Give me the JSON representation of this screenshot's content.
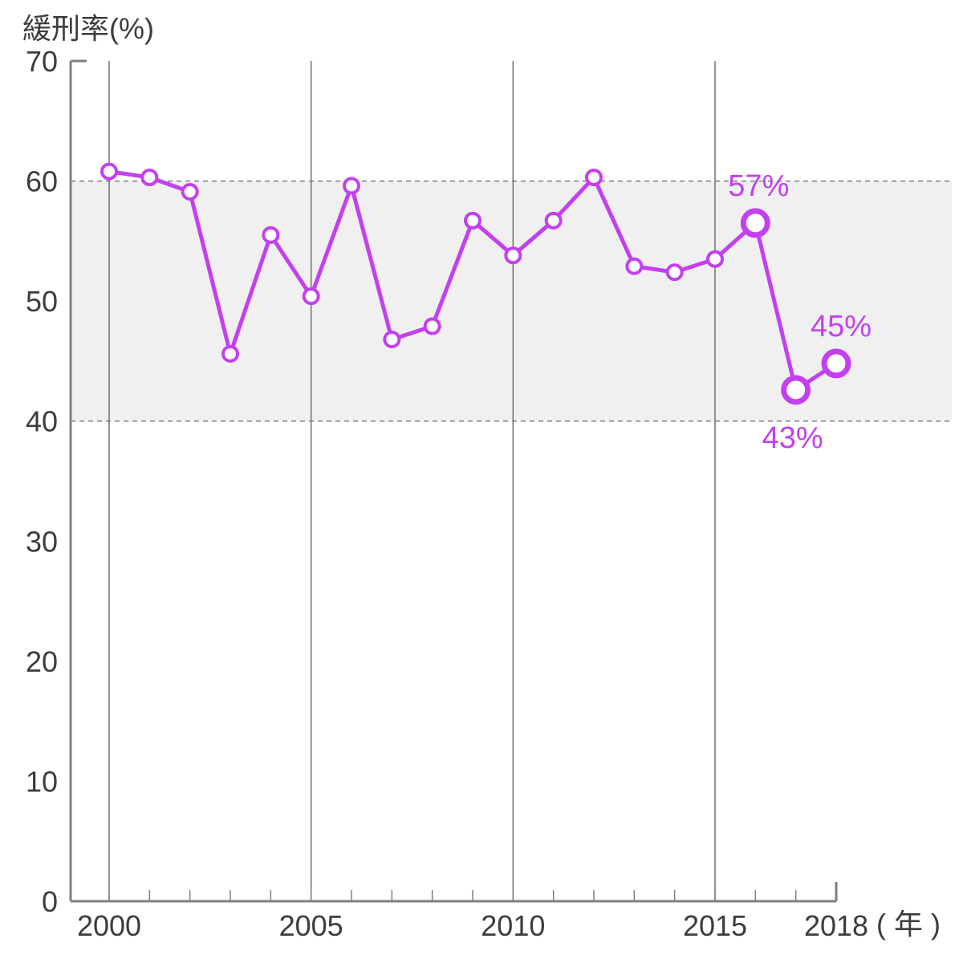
{
  "chart_data": {
    "type": "line",
    "ylabel": "緩刑率(%)",
    "xlabel": "( 年 )",
    "ylim": [
      0,
      70
    ],
    "xlim": [
      2000,
      2018
    ],
    "yticks": [
      0,
      10,
      20,
      30,
      40,
      50,
      60,
      70
    ],
    "xticks": [
      2000,
      2005,
      2010,
      2015,
      2018
    ],
    "grid": "vertical lines at 2000, 2005, 2010, 2015",
    "reference_band": {
      "from": 40,
      "to": 60
    },
    "series": [
      {
        "x": [
          2000,
          2001,
          2002,
          2003,
          2004,
          2005,
          2006,
          2007,
          2008,
          2009,
          2010,
          2011,
          2012,
          2013,
          2014,
          2015,
          2016,
          2017,
          2018
        ],
        "values": [
          60.8,
          60.3,
          59.1,
          45.6,
          55.5,
          50.4,
          59.6,
          46.8,
          47.9,
          56.7,
          53.8,
          56.7,
          60.3,
          52.9,
          52.4,
          53.5,
          56.5,
          42.6,
          44.8
        ]
      }
    ],
    "annotations": [
      {
        "x": 2016,
        "label": "57%"
      },
      {
        "x": 2017,
        "label": "43%"
      },
      {
        "x": 2018,
        "label": "45%"
      }
    ],
    "colors": {
      "line": "#c340f0",
      "band": "#f0f0f0",
      "axis": "#808080",
      "grid": "#707070",
      "text": "#3c3c3c"
    }
  }
}
